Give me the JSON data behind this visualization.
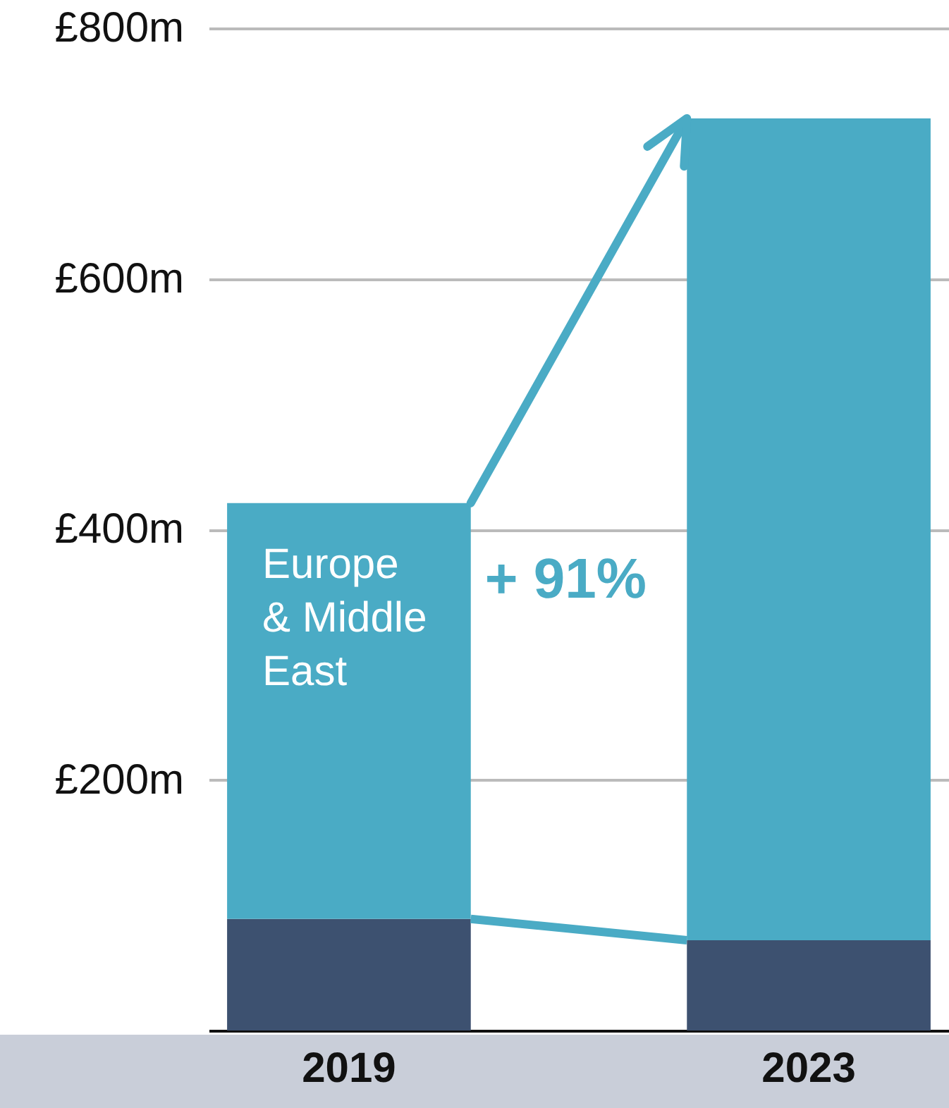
{
  "chart_data": {
    "type": "bar",
    "stacked": true,
    "categories": [
      "2019",
      "2023"
    ],
    "series": [
      {
        "color": "#3d5170",
        "values": [
          89,
          72
        ]
      },
      {
        "name": "Europe & Middle East",
        "color": "#4aabc5",
        "values": [
          332,
          656
        ]
      }
    ],
    "annotations": [
      "+ 91%"
    ],
    "ylim": [
      0,
      800
    ],
    "yticks": [
      {
        "value": 0,
        "label": null
      },
      {
        "value": 200,
        "label": "£200m"
      },
      {
        "value": 400,
        "label": "£400m"
      },
      {
        "value": 600,
        "label": "£600m"
      },
      {
        "value": 800,
        "label": "£800m"
      }
    ],
    "grid": "y",
    "legend": false
  }
}
